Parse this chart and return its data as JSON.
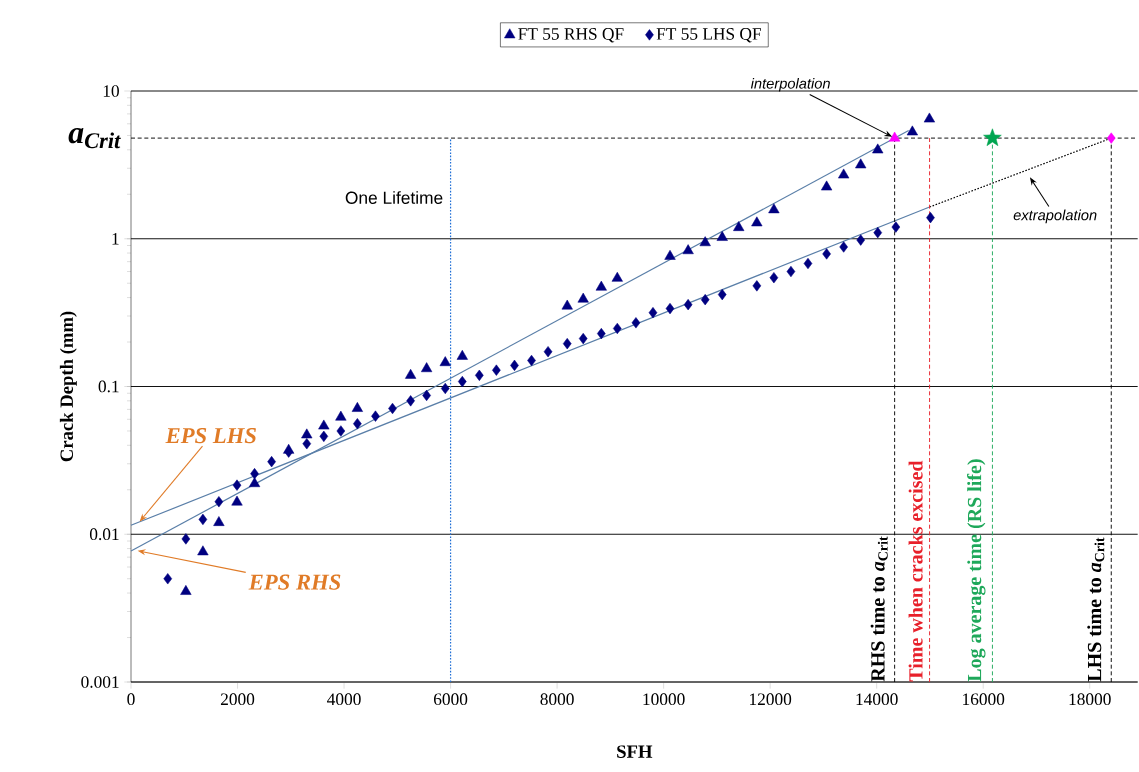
{
  "chart_data": {
    "type": "scatter",
    "xlabel": "SFH",
    "ylabel": "Crack Depth (mm)",
    "xlim": [
      0,
      18900
    ],
    "xticks": [
      0,
      2000,
      4000,
      6000,
      8000,
      10000,
      12000,
      14000,
      16000,
      18000
    ],
    "ylim": [
      0.001,
      10
    ],
    "yticks": [
      0.001,
      0.01,
      0.1,
      1,
      10
    ],
    "log": "y",
    "grid": "y",
    "legend": "top",
    "series": [
      {
        "name": "FT 55 RHS QF",
        "marker": "triangle",
        "color": "#000080",
        "x": [
          1030,
          1350,
          1650,
          1990,
          2320,
          2960,
          3300,
          3620,
          3940,
          4250,
          5250,
          5550,
          5900,
          6220,
          8190,
          8490,
          8830,
          9130,
          10120,
          10460,
          10780,
          11100,
          11410,
          11750,
          12070,
          13060,
          13380,
          13700,
          14020,
          14670,
          14990
        ],
        "values": [
          0.0041,
          0.0076,
          0.012,
          0.0165,
          0.022,
          0.037,
          0.047,
          0.054,
          0.062,
          0.071,
          0.119,
          0.132,
          0.145,
          0.16,
          0.35,
          0.39,
          0.47,
          0.54,
          0.76,
          0.83,
          0.94,
          1.02,
          1.19,
          1.28,
          1.57,
          2.24,
          2.7,
          3.16,
          3.99,
          5.28,
          6.46
        ]
      },
      {
        "name": "FT 55 LHS QF",
        "marker": "diamond",
        "color": "#000080",
        "x": [
          690,
          1030,
          1350,
          1650,
          1990,
          2320,
          2640,
          2960,
          3300,
          3620,
          3940,
          4250,
          4590,
          4910,
          5250,
          5550,
          5900,
          6220,
          6540,
          6860,
          7200,
          7520,
          7830,
          8190,
          8490,
          8830,
          9130,
          9480,
          9800,
          10120,
          10460,
          10780,
          11100,
          11750,
          12070,
          12390,
          12710,
          13060,
          13380,
          13700,
          14020,
          14360,
          15010
        ],
        "values": [
          0.005,
          0.0093,
          0.0126,
          0.0166,
          0.0215,
          0.0257,
          0.031,
          0.036,
          0.041,
          0.046,
          0.05,
          0.056,
          0.063,
          0.071,
          0.08,
          0.087,
          0.097,
          0.108,
          0.119,
          0.129,
          0.139,
          0.15,
          0.172,
          0.195,
          0.211,
          0.228,
          0.247,
          0.27,
          0.316,
          0.337,
          0.358,
          0.387,
          0.419,
          0.48,
          0.545,
          0.6,
          0.68,
          0.79,
          0.88,
          0.98,
          1.1,
          1.2,
          1.39
        ]
      },
      {
        "type": "line",
        "marker": "none",
        "line_style": "solid",
        "color": "#5a7fa8",
        "x": [
          0,
          14600
        ],
        "values": [
          0.0077,
          5.4
        ]
      },
      {
        "type": "line",
        "marker": "none",
        "line_style": "solid",
        "color": "#5a7fa8",
        "x": [
          0,
          14993
        ],
        "values": [
          0.0115,
          1.64
        ]
      },
      {
        "type": "line",
        "marker": "none",
        "line_style": "dotted",
        "color": "#000000",
        "x": [
          14993,
          18404
        ],
        "values": [
          1.64,
          4.8
        ]
      },
      {
        "marker": "triangle",
        "color": "#ff00ff",
        "x": [
          14337
        ],
        "values": [
          4.8
        ]
      },
      {
        "marker": "star",
        "color": "#00a550",
        "x": [
          16173
        ],
        "values": [
          4.8
        ]
      },
      {
        "marker": "diamond",
        "color": "#ff00ff",
        "x": [
          18404
        ],
        "values": [
          4.8
        ]
      }
    ],
    "ref_lines": [
      {
        "axis": "y",
        "value": 4.8,
        "label": "a$_{Crit}$",
        "color": "#000000",
        "line_style": "dashed"
      },
      {
        "axis": "x",
        "value": 6000,
        "label": "One Lifetime",
        "color": "#1f6fd6",
        "line_style": "dotted"
      },
      {
        "axis": "x",
        "value": 14337,
        "label": "RHS time to *a*$_{Crit}$",
        "color": "#000000",
        "line_style": "dashed"
      },
      {
        "axis": "x",
        "value": 14993,
        "label": "Time when cracks excised",
        "color": "#e8202a",
        "line_style": "dashed"
      },
      {
        "axis": "x",
        "value": 16173,
        "label": "Log average time (RS life)",
        "color": "#1ea85a",
        "line_style": "dashed"
      },
      {
        "axis": "x",
        "value": 18404,
        "label": "LHS time to *a*$_{Crit}$",
        "color": "#000000",
        "line_style": "dashed"
      }
    ],
    "annotations": [
      {
        "text": "interpolation",
        "x": 14337,
        "y": 4.8
      },
      {
        "text": "extrapolation",
        "x": 16850,
        "y": 2.7
      },
      {
        "text": "EPS LHS",
        "x": 130,
        "y": 0.0118
      },
      {
        "text": "EPS RHS",
        "x": 75,
        "y": 0.0078
      }
    ]
  }
}
